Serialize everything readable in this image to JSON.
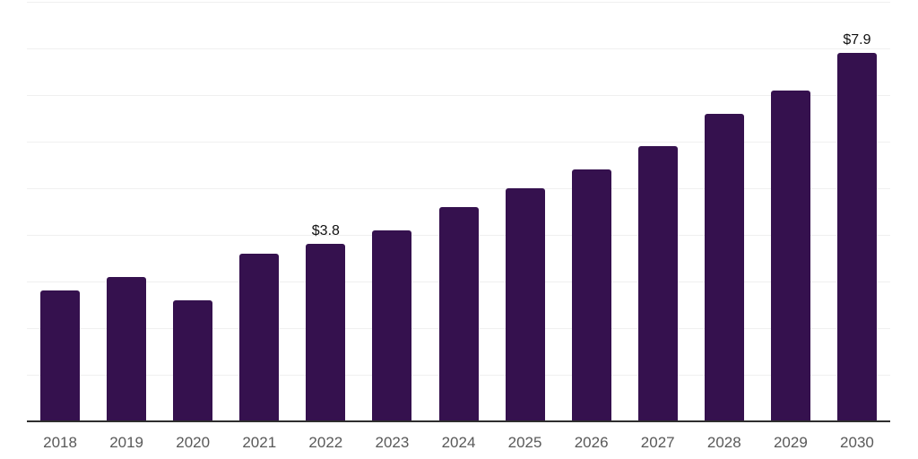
{
  "chart_data": {
    "type": "bar",
    "title": "",
    "xlabel": "",
    "ylabel": "",
    "categories": [
      "2018",
      "2019",
      "2020",
      "2021",
      "2022",
      "2023",
      "2024",
      "2025",
      "2026",
      "2027",
      "2028",
      "2029",
      "2030"
    ],
    "values": [
      2.8,
      3.1,
      2.6,
      3.6,
      3.8,
      4.1,
      4.6,
      5.0,
      5.4,
      5.9,
      6.6,
      7.1,
      7.9
    ],
    "annotations": [
      {
        "category": "2022",
        "text": "$3.8"
      },
      {
        "category": "2030",
        "text": "$7.9"
      }
    ],
    "ylim": [
      0,
      9
    ],
    "gridline_step": 1,
    "grid": true,
    "legend": "none",
    "y_tick_labels_visible": false,
    "colors": {
      "bar": "#35114E",
      "gridline": "#F0F0F0",
      "axis_line": "#2E2E2E",
      "tick_label": "#595959",
      "value_label": "#111111",
      "background": "#FFFFFF"
    }
  }
}
